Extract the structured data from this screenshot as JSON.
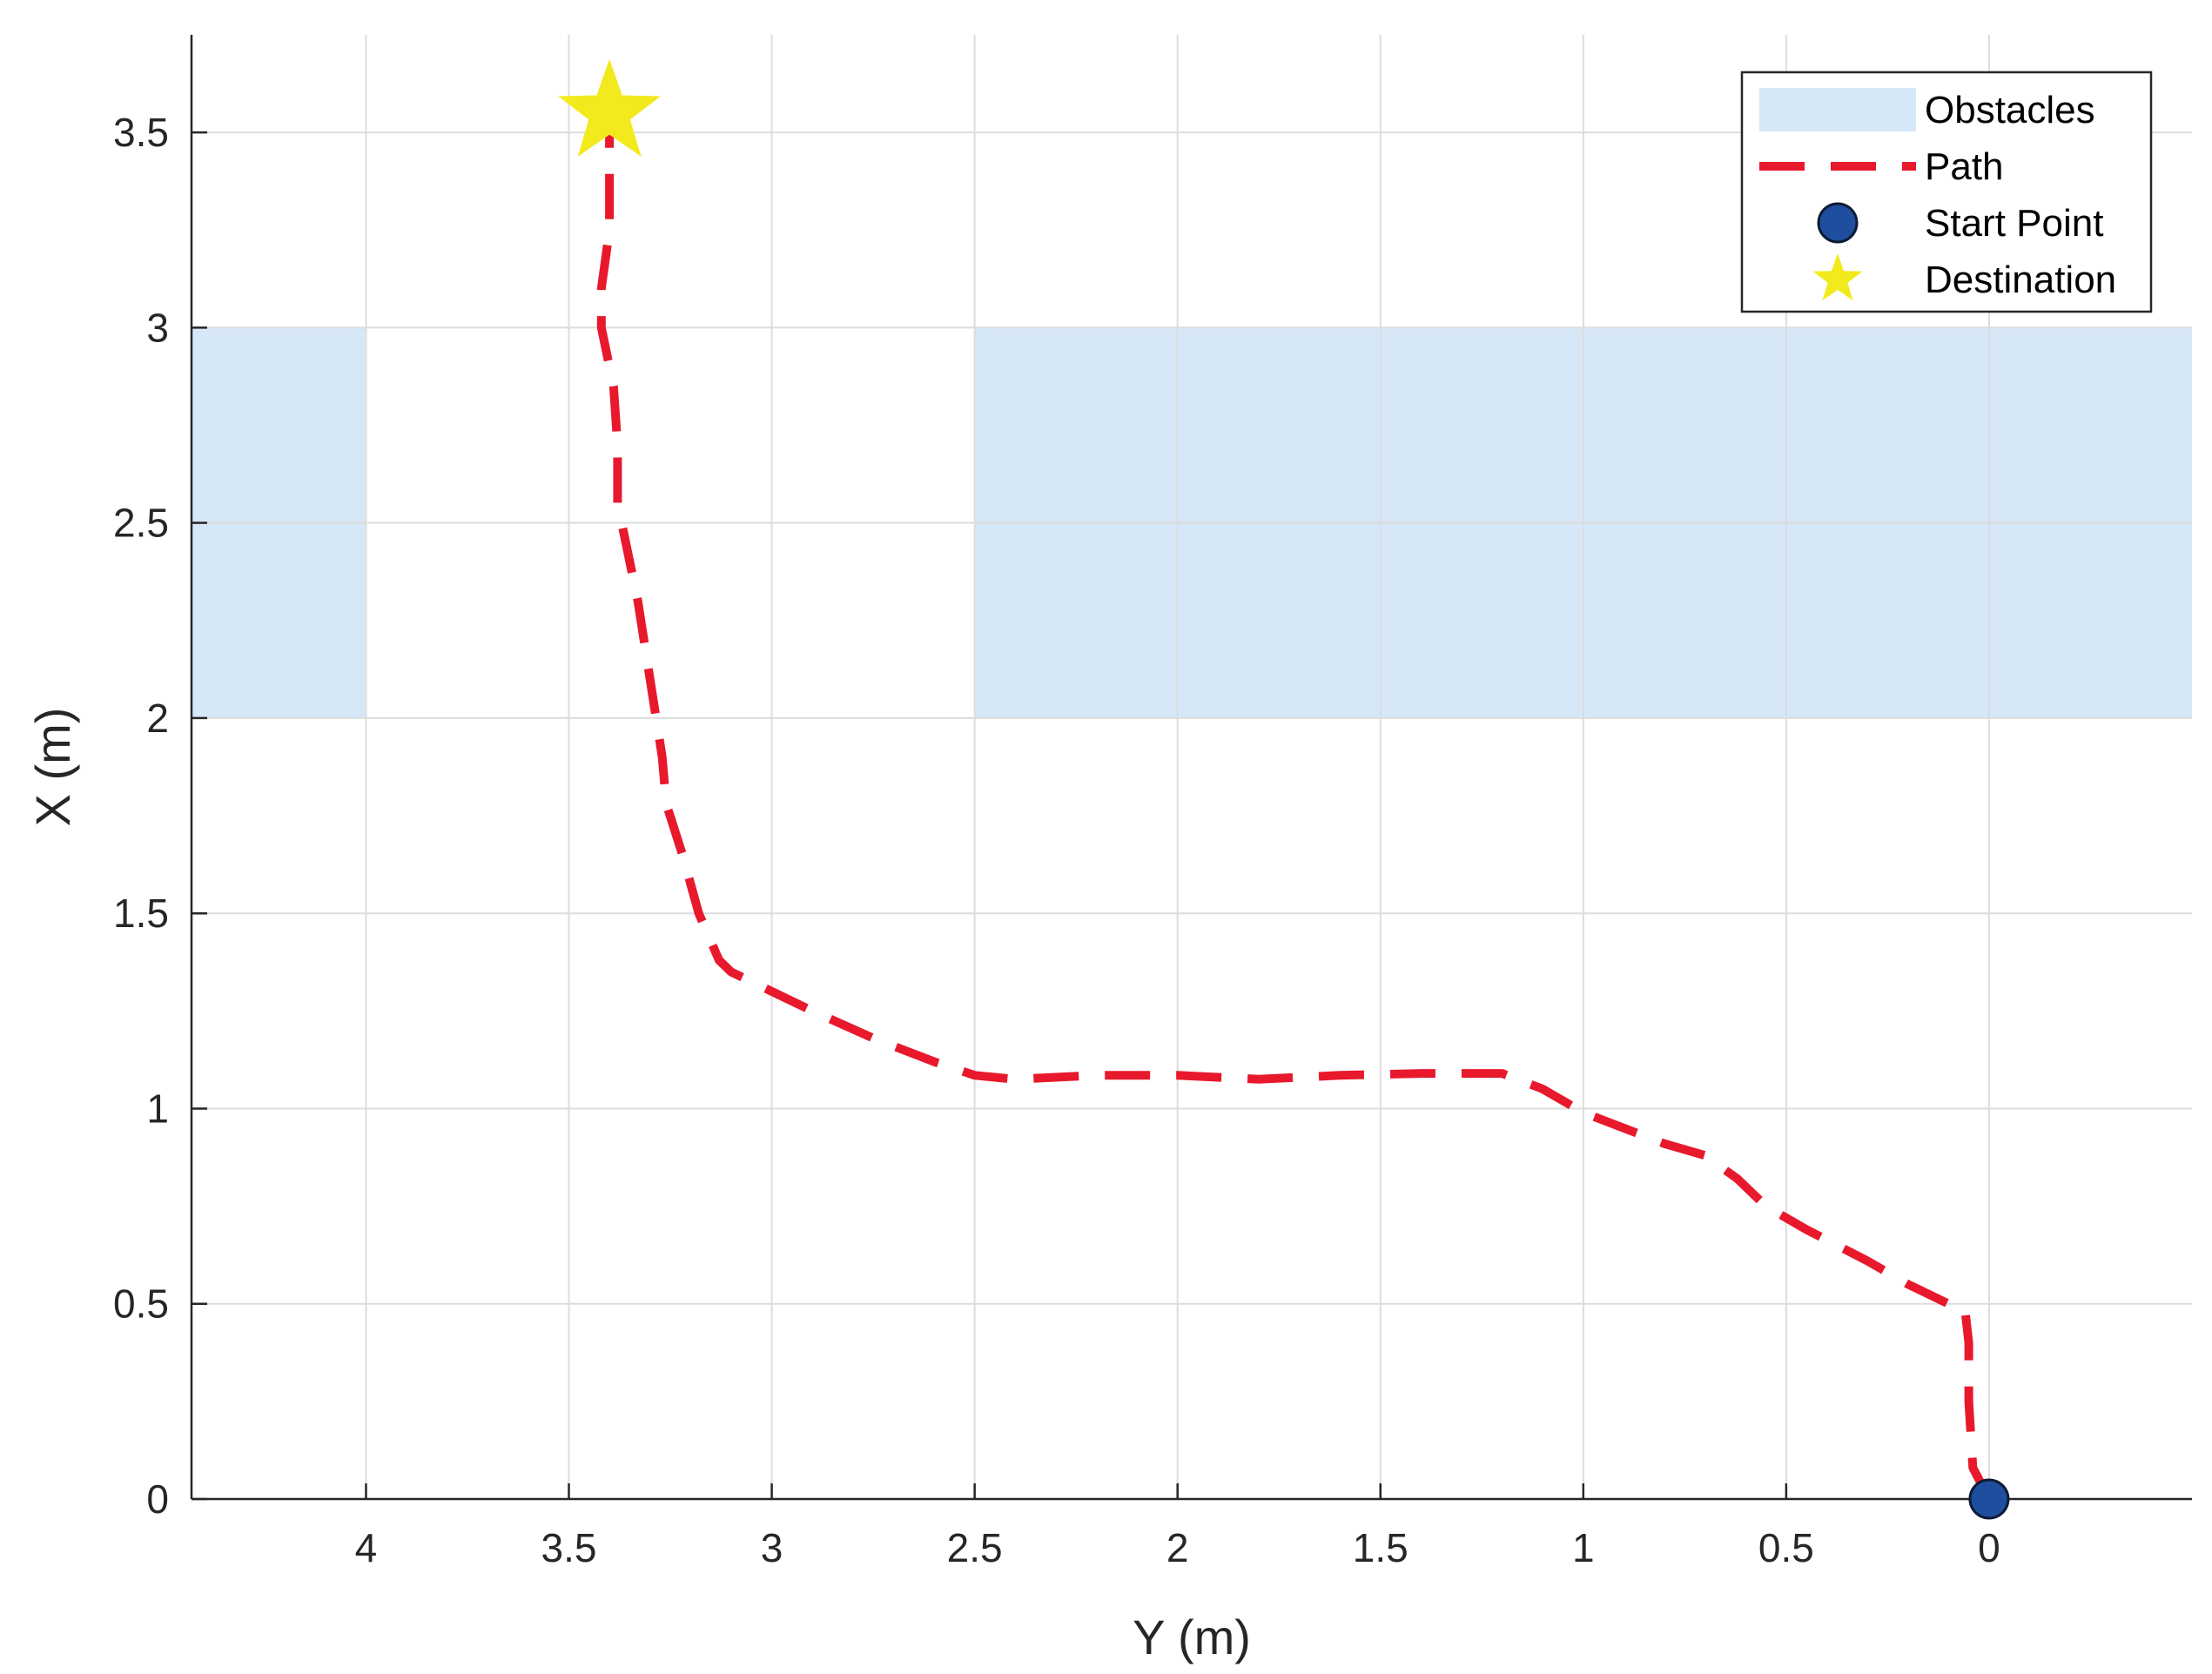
{
  "chart_data": {
    "type": "line",
    "xlabel": "Y (m)",
    "ylabel": "X (m)",
    "xlim": [
      -0.5,
      4.43
    ],
    "ylim": [
      0,
      3.75
    ],
    "x_reversed": true,
    "grid": true,
    "legend_position": "top-right",
    "x_ticks": [
      {
        "value": 4,
        "label": "4"
      },
      {
        "value": 3.5,
        "label": "3.5"
      },
      {
        "value": 3,
        "label": "3"
      },
      {
        "value": 2.5,
        "label": "2.5"
      },
      {
        "value": 2,
        "label": "2"
      },
      {
        "value": 1.5,
        "label": "1.5"
      },
      {
        "value": 1,
        "label": "1"
      },
      {
        "value": 0.5,
        "label": "0.5"
      },
      {
        "value": 0,
        "label": "0"
      }
    ],
    "y_ticks": [
      {
        "value": 0,
        "label": "0"
      },
      {
        "value": 0.5,
        "label": "0.5"
      },
      {
        "value": 1,
        "label": "1"
      },
      {
        "value": 1.5,
        "label": "1.5"
      },
      {
        "value": 2,
        "label": "2"
      },
      {
        "value": 2.5,
        "label": "2.5"
      },
      {
        "value": 3,
        "label": "3"
      },
      {
        "value": 3.5,
        "label": "3.5"
      }
    ],
    "obstacles": {
      "name": "Obstacles",
      "color": "#d6e8f7",
      "rects": [
        {
          "y_min": 4.0,
          "y_max": 4.43,
          "x_min": 2.0,
          "x_max": 3.0
        },
        {
          "y_min": -0.5,
          "y_max": 2.5,
          "x_min": 2.0,
          "x_max": 3.0
        }
      ]
    },
    "path": {
      "name": "Path",
      "color": "#e8192c",
      "points": [
        [
          0.0,
          0.0
        ],
        [
          0.04,
          0.08
        ],
        [
          0.05,
          0.25
        ],
        [
          0.05,
          0.4
        ],
        [
          0.06,
          0.49
        ],
        [
          0.1,
          0.5
        ],
        [
          0.2,
          0.55
        ],
        [
          0.3,
          0.61
        ],
        [
          0.45,
          0.69
        ],
        [
          0.55,
          0.75
        ],
        [
          0.62,
          0.82
        ],
        [
          0.7,
          0.88
        ],
        [
          0.8,
          0.91
        ],
        [
          0.9,
          0.95
        ],
        [
          1.0,
          0.99
        ],
        [
          1.1,
          1.05
        ],
        [
          1.2,
          1.09
        ],
        [
          1.4,
          1.09
        ],
        [
          1.6,
          1.085
        ],
        [
          1.8,
          1.075
        ],
        [
          2.0,
          1.085
        ],
        [
          2.2,
          1.085
        ],
        [
          2.4,
          1.075
        ],
        [
          2.5,
          1.085
        ],
        [
          2.6,
          1.12
        ],
        [
          2.75,
          1.18
        ],
        [
          2.9,
          1.25
        ],
        [
          3.0,
          1.3
        ],
        [
          3.1,
          1.35
        ],
        [
          3.13,
          1.38
        ],
        [
          3.18,
          1.5
        ],
        [
          3.22,
          1.65
        ],
        [
          3.26,
          1.78
        ],
        [
          3.27,
          1.9
        ],
        [
          3.3,
          2.1
        ],
        [
          3.33,
          2.3
        ],
        [
          3.36,
          2.45
        ],
        [
          3.38,
          2.55
        ],
        [
          3.38,
          2.7
        ],
        [
          3.39,
          2.85
        ],
        [
          3.42,
          3.0
        ],
        [
          3.42,
          3.1
        ],
        [
          3.4,
          3.25
        ],
        [
          3.4,
          3.35
        ],
        [
          3.4,
          3.55
        ]
      ]
    },
    "start_point": {
      "name": "Start Point",
      "y": 0.0,
      "x": 0.0,
      "color": "#1f4e9e"
    },
    "destination": {
      "name": "Destination",
      "y": 3.4,
      "x": 3.55,
      "color": "#f2ea1d"
    },
    "legend": [
      "Obstacles",
      "Path",
      "Start Point",
      "Destination"
    ]
  }
}
